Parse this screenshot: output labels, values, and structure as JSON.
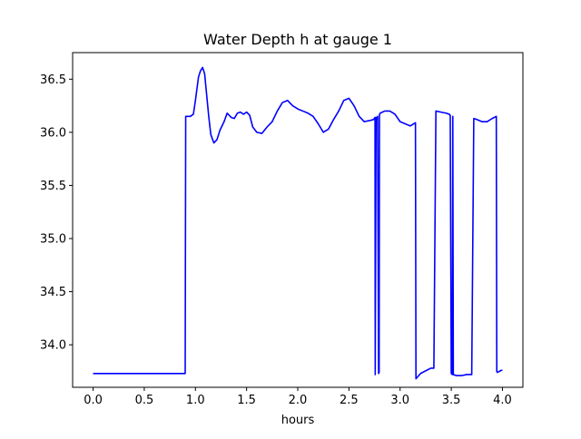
{
  "colors": {
    "series": "#0000ff",
    "axes": "#000000",
    "background": "#ffffff"
  },
  "chart_data": {
    "type": "line",
    "title": "Water Depth h at gauge 1",
    "xlabel": "hours",
    "ylabel": "",
    "xlim": [
      -0.2,
      4.2
    ],
    "ylim": [
      33.6,
      36.75
    ],
    "xticks": [
      0.0,
      0.5,
      1.0,
      1.5,
      2.0,
      2.5,
      3.0,
      3.5,
      4.0
    ],
    "xtick_labels": [
      "0.0",
      "0.5",
      "1.0",
      "1.5",
      "2.0",
      "2.5",
      "3.0",
      "3.5",
      "4.0"
    ],
    "yticks": [
      34.0,
      34.5,
      35.0,
      35.5,
      36.0,
      36.5
    ],
    "ytick_labels": [
      "34.0",
      "34.5",
      "35.0",
      "35.5",
      "36.0",
      "36.5"
    ],
    "grid": false,
    "legend": "none",
    "series": [
      {
        "x": [
          0.0,
          0.5,
          0.9,
          0.905,
          0.95,
          0.98,
          1.0,
          1.03,
          1.05,
          1.07,
          1.09,
          1.11,
          1.13,
          1.15,
          1.18,
          1.21,
          1.24,
          1.28,
          1.31,
          1.35,
          1.38,
          1.41,
          1.44,
          1.47,
          1.5,
          1.53,
          1.56,
          1.6,
          1.65,
          1.7,
          1.75,
          1.8,
          1.85,
          1.9,
          1.95,
          2.0,
          2.05,
          2.1,
          2.15,
          2.2,
          2.25,
          2.3,
          2.35,
          2.4,
          2.45,
          2.5,
          2.55,
          2.6,
          2.65,
          2.7,
          2.74,
          2.755,
          2.757,
          2.765,
          2.77,
          2.78,
          2.79,
          2.795,
          2.798,
          2.8,
          2.805,
          2.85,
          2.9,
          2.95,
          3.0,
          3.05,
          3.1,
          3.15,
          3.155,
          3.2,
          3.3,
          3.33,
          3.35,
          3.4,
          3.45,
          3.48,
          3.49,
          3.5,
          3.51,
          3.515,
          3.52,
          3.55,
          3.6,
          3.65,
          3.7,
          3.72,
          3.75,
          3.8,
          3.85,
          3.9,
          3.94,
          3.945,
          3.95,
          3.99,
          4.0
        ],
        "y": [
          33.73,
          33.73,
          33.73,
          36.15,
          36.15,
          36.17,
          36.3,
          36.52,
          36.58,
          36.61,
          36.55,
          36.35,
          36.15,
          35.98,
          35.9,
          35.93,
          36.02,
          36.1,
          36.18,
          36.14,
          36.13,
          36.18,
          36.19,
          36.17,
          36.19,
          36.16,
          36.05,
          36.0,
          35.99,
          36.05,
          36.1,
          36.2,
          36.28,
          36.3,
          36.25,
          36.22,
          36.2,
          36.18,
          36.15,
          36.08,
          36.0,
          36.03,
          36.12,
          36.2,
          36.3,
          36.32,
          36.25,
          36.15,
          36.1,
          36.11,
          36.12,
          36.14,
          33.72,
          36.14,
          36.12,
          36.15,
          33.73,
          33.74,
          36.15,
          36.17,
          36.18,
          36.2,
          36.2,
          36.17,
          36.1,
          36.08,
          36.06,
          36.09,
          33.68,
          33.73,
          33.78,
          33.78,
          36.2,
          36.19,
          36.18,
          36.17,
          36.16,
          33.73,
          33.72,
          36.15,
          33.72,
          33.71,
          33.71,
          33.72,
          33.72,
          36.13,
          36.12,
          36.1,
          36.1,
          36.13,
          36.15,
          33.75,
          33.74,
          33.76,
          33.76
        ]
      }
    ]
  }
}
